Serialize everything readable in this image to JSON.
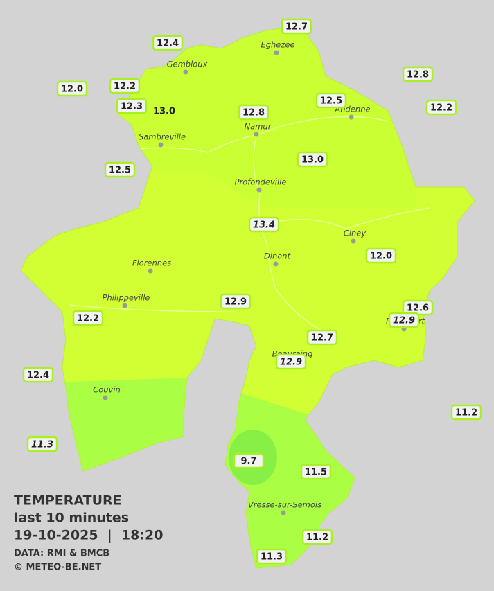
{
  "stations": [
    "12.7",
    "12.4",
    "12.8",
    "12.0",
    "12.2",
    "12.3",
    "13.0",
    "12.8",
    "12.5",
    "12.2",
    "12.5",
    "13.0",
    "13.4",
    "12.0",
    "12.6",
    "12.9",
    "12.9",
    "12.2",
    "12.7",
    "12.9",
    "12.4",
    "11.2",
    "11.3",
    "9.7",
    "11.5",
    "11.2",
    "11.3"
  ],
  "towns": [
    "Eghezee",
    "Gembloux",
    "Andenne",
    "Namur",
    "Sambreville",
    "Profondeville",
    "Ciney",
    "Dinant",
    "Florennes",
    "Philippeville",
    "Rochefort",
    "Beauraing",
    "Couvin",
    "Vresse-sur-Semois"
  ],
  "legend": {
    "title": "TEMPERATURE",
    "subtitle": "last 10 minutes",
    "datetime": "19-10-2025  |  18:20",
    "source": "DATA: RMI & BMCB",
    "credit": "© METEO-BE.NET"
  }
}
